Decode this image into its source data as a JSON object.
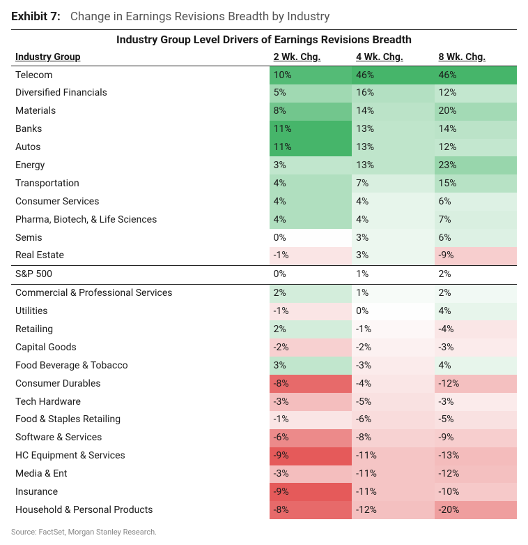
{
  "exhibit_label": "Exhibit 7:",
  "exhibit_title": "Change in Earnings Revisions Breadth by Industry",
  "table_title": "Industry Group Level Drivers of Earnings Revisions Breadth",
  "columns": [
    "Industry Group",
    "2 Wk. Chg.",
    "4 Wk. Chg.",
    "8 Wk. Chg."
  ],
  "source": "Source: FactSet, Morgan Stanley Research.",
  "heatmap": {
    "pos_color": "#46b56a",
    "neg_color": "#e03c3c",
    "neutral_color": "#fefefe",
    "max_abs_per_col": [
      11,
      46,
      46
    ]
  },
  "rows": [
    {
      "name": "Telecom",
      "vals": [
        10,
        46,
        46
      ]
    },
    {
      "name": "Diversified Financials",
      "vals": [
        5,
        16,
        12
      ]
    },
    {
      "name": "Materials",
      "vals": [
        8,
        14,
        20
      ]
    },
    {
      "name": "Banks",
      "vals": [
        11,
        13,
        14
      ]
    },
    {
      "name": "Autos",
      "vals": [
        11,
        13,
        12
      ]
    },
    {
      "name": "Energy",
      "vals": [
        3,
        13,
        23
      ]
    },
    {
      "name": "Transportation",
      "vals": [
        4,
        7,
        15
      ]
    },
    {
      "name": "Consumer Services",
      "vals": [
        4,
        4,
        6
      ]
    },
    {
      "name": "Pharma, Biotech, & Life Sciences",
      "vals": [
        4,
        4,
        7
      ]
    },
    {
      "name": "Semis",
      "vals": [
        0,
        3,
        6
      ]
    },
    {
      "name": "Real Estate",
      "vals": [
        -1,
        3,
        -9
      ]
    },
    {
      "name": "S&P 500",
      "vals": [
        0,
        1,
        2
      ],
      "benchmark": true
    },
    {
      "name": "Commercial & Professional Services",
      "vals": [
        2,
        1,
        2
      ]
    },
    {
      "name": "Utilities",
      "vals": [
        -1,
        0,
        4
      ]
    },
    {
      "name": "Retailing",
      "vals": [
        2,
        -1,
        -4
      ]
    },
    {
      "name": "Capital Goods",
      "vals": [
        -2,
        -2,
        -3
      ]
    },
    {
      "name": "Food Beverage & Tobacco",
      "vals": [
        3,
        -3,
        4
      ]
    },
    {
      "name": "Consumer Durables",
      "vals": [
        -8,
        -4,
        -12
      ]
    },
    {
      "name": "Tech Hardware",
      "vals": [
        -3,
        -5,
        -3
      ]
    },
    {
      "name": "Food & Staples Retailing",
      "vals": [
        -1,
        -6,
        -5
      ]
    },
    {
      "name": "Software & Services",
      "vals": [
        -6,
        -8,
        -9
      ]
    },
    {
      "name": "HC Equipment & Services",
      "vals": [
        -9,
        -11,
        -13
      ]
    },
    {
      "name": "Media & Ent",
      "vals": [
        -3,
        -11,
        -12
      ]
    },
    {
      "name": "Insurance",
      "vals": [
        -9,
        -11,
        -10
      ]
    },
    {
      "name": "Household & Personal Products",
      "vals": [
        -8,
        -12,
        -20
      ]
    }
  ]
}
